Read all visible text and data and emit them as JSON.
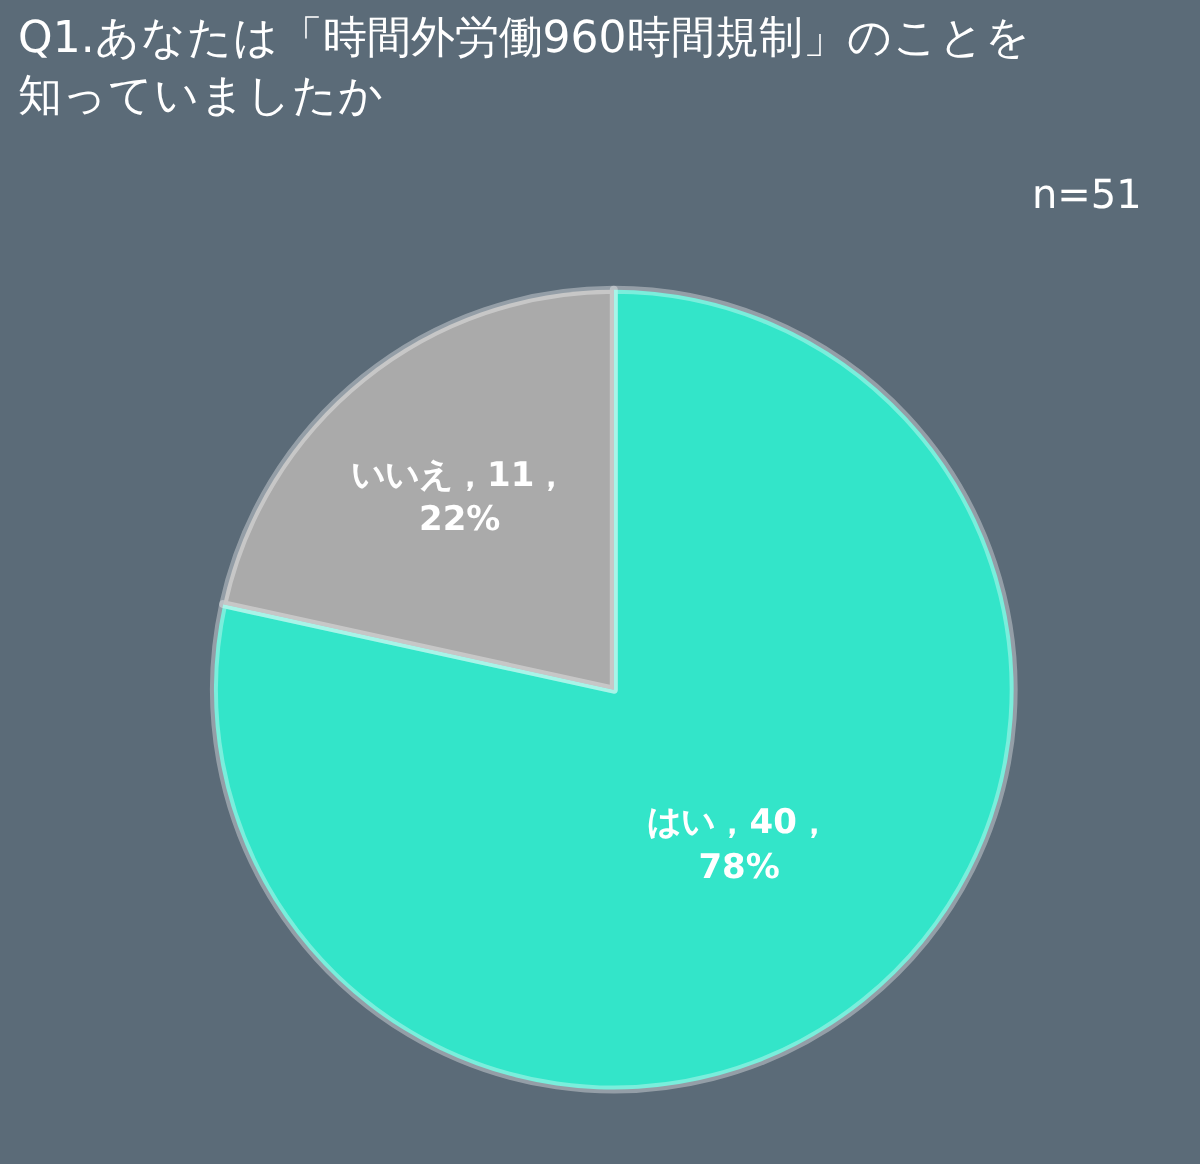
{
  "chart_data": {
    "type": "pie",
    "title": "Q1.あなたは「時間外労働960時間規制」のことを知っていましたか",
    "annotations": [
      "n=51"
    ],
    "categories": [
      "はい",
      "いいえ"
    ],
    "values": [
      40,
      11
    ],
    "colors": [
      "#33e5c9",
      "#aaaaaa"
    ],
    "value_labels": [
      "，40，\n78%",
      "，11，\n22%"
    ],
    "legend": false
  }
}
